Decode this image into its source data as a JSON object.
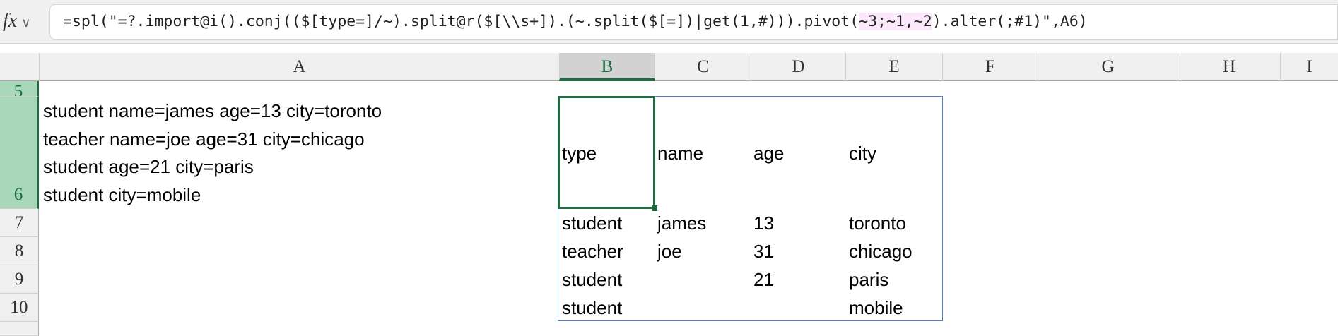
{
  "formula_bar": {
    "fx_label": "fx",
    "chevron": "∨",
    "pre": "=spl(\"=?.import@i().conj(($[type=]/~).split@r($[\\\\s+]).(~.split($[=])|get(1,#))).pivot(",
    "highlight": "~3;~1,~2",
    "post": ").alter(;#1)\",A6)"
  },
  "columns": [
    "A",
    "B",
    "C",
    "D",
    "E",
    "F",
    "G",
    "H",
    "I"
  ],
  "selected_column": "B",
  "rows": [
    "5",
    "6",
    "7",
    "8",
    "9",
    "10"
  ],
  "selected_rows": [
    "5",
    "6"
  ],
  "a6_lines": [
    "student name=james age=13 city=toronto",
    "teacher name=joe age=31 city=chicago",
    "student age=21 city=paris",
    "student city=mobile"
  ],
  "table": {
    "header": [
      "type",
      "name",
      "age",
      "city"
    ],
    "rows": [
      [
        "student",
        "james",
        "13",
        "toronto"
      ],
      [
        "teacher",
        "joe",
        "31",
        "chicago"
      ],
      [
        "student",
        "",
        "21",
        "paris"
      ],
      [
        "student",
        "",
        "",
        "mobile"
      ]
    ]
  },
  "colors": {
    "selection": "#1d6b3e",
    "range_border": "#4a7fd6",
    "formula_highlight": "#fbe8fb"
  }
}
